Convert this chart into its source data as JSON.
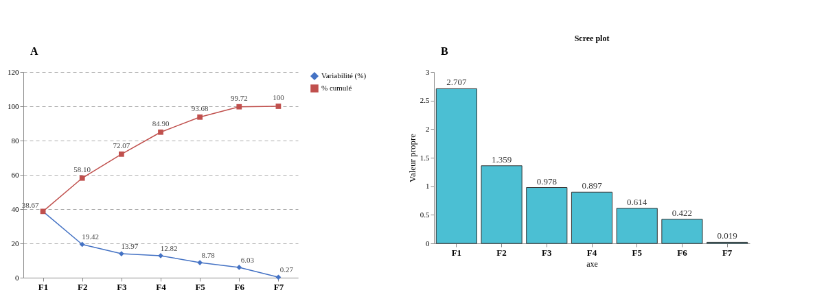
{
  "chart_data": [
    {
      "type": "line",
      "categories": [
        "F1",
        "F2",
        "F3",
        "F4",
        "F5",
        "F6",
        "F7"
      ],
      "ylim": [
        0,
        120
      ],
      "yticks": [
        0,
        20,
        40,
        60,
        80,
        100,
        120
      ],
      "grid": "y",
      "line_style": "solid",
      "legend": "right",
      "annotations": [
        "A"
      ],
      "series": [
        {
          "name": "Variabilité (%)",
          "color": "#4472c4",
          "marker": "diamond",
          "values": [
            38.67,
            19.42,
            13.97,
            12.82,
            8.78,
            6.03,
            0.27
          ],
          "value_labels": [
            "38.67",
            "19.42",
            "13.97",
            "12.82",
            "8.78",
            "6.03",
            "0.27"
          ]
        },
        {
          "name": "% cumulé",
          "color": "#c0504d",
          "marker": "square",
          "values": [
            38.67,
            58.1,
            72.07,
            84.9,
            93.68,
            99.72,
            100
          ],
          "value_labels": [
            null,
            "58.10",
            "72.07",
            "84.90",
            "93.68",
            "99.72",
            "100"
          ]
        }
      ]
    },
    {
      "type": "bar",
      "title": "Scree plot",
      "xlabel": "axe",
      "ylabel": "Valeur propre",
      "categories": [
        "F1",
        "F2",
        "F3",
        "F4",
        "F5",
        "F6",
        "F7"
      ],
      "values": [
        2.707,
        1.359,
        0.978,
        0.897,
        0.614,
        0.422,
        0.019
      ],
      "color": "#4bbfd3",
      "ylim": [
        0,
        3
      ],
      "yticks": [
        0,
        0.5,
        1,
        1.5,
        2,
        2.5,
        3
      ],
      "data_labels": true,
      "grid": false,
      "annotations": [
        "B"
      ]
    }
  ]
}
